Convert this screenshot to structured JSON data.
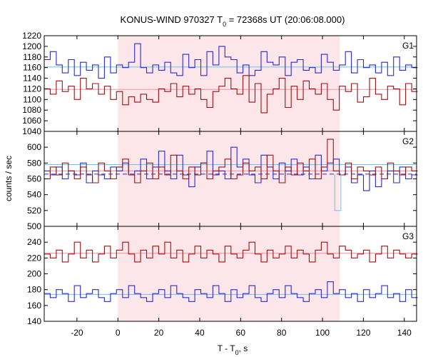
{
  "chart_data": {
    "type": "line",
    "title": {
      "prefix": "KONUS-WIND 970327 T",
      "sub": "0",
      "suffix": " = 72368s UT (20:06:08.000)"
    },
    "xlabel": {
      "prefix": "T - T",
      "sub": "0",
      "suffix": ", s"
    },
    "ylabel": "counts / sec",
    "xlim": [
      -36,
      146
    ],
    "xticks": [
      -20,
      0,
      20,
      40,
      60,
      80,
      100,
      120,
      140
    ],
    "xtick_labels": [
      "-20",
      "0",
      "20",
      "40",
      "60",
      "80",
      "100",
      "120",
      "140"
    ],
    "highlight_interval": [
      0,
      108.5
    ],
    "colors": {
      "red": "#a01010",
      "blue": "#2a2ad0",
      "light_red": "#ff8fa3",
      "light_blue": "#62c4f0",
      "highlight": "#fde6e9"
    },
    "panels": [
      {
        "label": "G1",
        "ylim": [
          1040,
          1220
        ],
        "yticks": [
          1040,
          1060,
          1080,
          1100,
          1120,
          1140,
          1160,
          1180,
          1200,
          1220
        ],
        "ytick_labels": [
          "1040",
          "1060",
          "1080",
          "1100",
          "1120",
          "1140",
          "1160",
          "1180",
          "1200",
          "1220"
        ],
        "bin_start": -36,
        "bin_width": 2.944,
        "series": [
          {
            "color_key": "blue",
            "values": [
              1175,
              1190,
              1165,
              1150,
              1175,
              1145,
              1170,
              1155,
              1165,
              1140,
              1180,
              1150,
              1165,
              1160,
              1170,
              1205,
              1160,
              1150,
              1165,
              1155,
              1170,
              1150,
              1145,
              1185,
              1160,
              1175,
              1145,
              1190,
              1165,
              1200,
              1180,
              1175,
              1150,
              1165,
              1145,
              1155,
              1190,
              1170,
              1165,
              1180,
              1145,
              1170,
              1175,
              1155,
              1160,
              1150,
              1185,
              1170,
              1155,
              1165,
              1190,
              1150,
              1175,
              1160,
              1165,
              1150,
              1170,
              1145,
              1180,
              1155,
              1165,
              1160
            ]
          },
          {
            "color_key": "red",
            "values": [
              1120,
              1110,
              1135,
              1115,
              1125,
              1100,
              1140,
              1120,
              1130,
              1110,
              1125,
              1100,
              1115,
              1090,
              1105,
              1095,
              1110,
              1100,
              1095,
              1120,
              1115,
              1130,
              1105,
              1125,
              1110,
              1120,
              1100,
              1085,
              1115,
              1125,
              1140,
              1120,
              1110,
              1145,
              1095,
              1130,
              1075,
              1110,
              1120,
              1140,
              1085,
              1125,
              1100,
              1135,
              1120,
              1110,
              1130,
              1100,
              1080,
              1125,
              1115,
              1130,
              1095,
              1105,
              1140,
              1110,
              1100,
              1125,
              1120,
              1090,
              1130,
              1115
            ]
          }
        ],
        "fits": [
          {
            "color_key": "light_blue",
            "y": 1161,
            "dashed": false
          },
          {
            "color_key": "light_red",
            "y": 1119,
            "dashed": false
          }
        ]
      },
      {
        "label": "G2",
        "ylim": [
          500,
          620
        ],
        "yticks": [
          500,
          520,
          540,
          560,
          580,
          600
        ],
        "ytick_labels": [
          "500",
          "520",
          "540",
          "560",
          "580",
          "600"
        ],
        "bin_start": -36,
        "bin_width": 2.944,
        "series": [
          {
            "color_key": "blue",
            "values": [
              570,
              565,
              575,
              560,
              570,
              565,
              580,
              555,
              570,
              565,
              560,
              575,
              570,
              580,
              565,
              570,
              585,
              560,
              575,
              595,
              570,
              560,
              590,
              565,
              550,
              575,
              580,
              595,
              565,
              570,
              560,
              600,
              575,
              585,
              565,
              555,
              590,
              575,
              560,
              580,
              570,
              585,
              565,
              575,
              560,
              590,
              570,
              580,
              585,
              565,
              575,
              555,
              565,
              545,
              570,
              550,
              560,
              570,
              555,
              575,
              560,
              565
            ]
          },
          {
            "color_key": "red",
            "values": [
              560,
              575,
              565,
              580,
              570,
              560,
              575,
              565,
              555,
              580,
              570,
              560,
              575,
              585,
              565,
              555,
              570,
              580,
              560,
              575,
              565,
              590,
              570,
              560,
              575,
              565,
              580,
              560,
              570,
              575,
              585,
              560,
              565,
              580,
              570,
              575,
              560,
              590,
              570,
              555,
              575,
              565,
              580,
              570,
              585,
              560,
              575,
              610,
              570,
              565,
              580,
              560,
              575,
              570,
              565,
              575,
              560,
              580,
              570,
              565,
              575,
              570
            ]
          }
        ],
        "fits": [
          {
            "color_key": "light_blue",
            "y": 578,
            "dashed": false
          },
          {
            "color_key": "light_red",
            "y": 570,
            "dashed": false
          },
          {
            "color_key": "blue",
            "y": 566,
            "dashed": true
          }
        ],
        "dip": {
          "color_key": "light_blue",
          "x0": 106,
          "x1": 109,
          "y": 520,
          "base": 566
        }
      },
      {
        "label": "G3",
        "ylim": [
          140,
          260
        ],
        "yticks": [
          140,
          160,
          180,
          200,
          220,
          240
        ],
        "ytick_labels": [
          "140",
          "160",
          "180",
          "200",
          "220",
          "240"
        ],
        "bin_start": -36,
        "bin_width": 2.944,
        "series": [
          {
            "color_key": "red",
            "values": [
              225,
              220,
              230,
              215,
              225,
              240,
              220,
              230,
              215,
              225,
              235,
              220,
              230,
              240,
              225,
              215,
              230,
              220,
              235,
              225,
              240,
              220,
              230,
              215,
              225,
              235,
              220,
              230,
              225,
              215,
              235,
              225,
              220,
              230,
              240,
              225,
              215,
              230,
              220,
              225,
              235,
              220,
              230,
              225,
              215,
              230,
              240,
              225,
              220,
              235,
              230,
              220,
              225,
              230,
              215,
              225,
              235,
              220,
              230,
              225,
              220,
              225
            ]
          },
          {
            "color_key": "blue",
            "values": [
              175,
              170,
              180,
              175,
              165,
              185,
              170,
              175,
              180,
              170,
              165,
              175,
              180,
              170,
              185,
              175,
              170,
              165,
              175,
              180,
              170,
              185,
              175,
              170,
              165,
              180,
              175,
              170,
              185,
              175,
              165,
              180,
              170,
              175,
              185,
              170,
              165,
              175,
              180,
              170,
              185,
              175,
              170,
              165,
              175,
              180,
              170,
              190,
              175,
              180,
              170,
              175,
              165,
              180,
              170,
              175,
              185,
              170,
              175,
              165,
              180,
              170
            ]
          }
        ],
        "fits": [
          {
            "color_key": "light_red",
            "y": 226,
            "dashed": false
          },
          {
            "color_key": "light_blue",
            "y": 174,
            "dashed": false
          }
        ]
      }
    ]
  }
}
